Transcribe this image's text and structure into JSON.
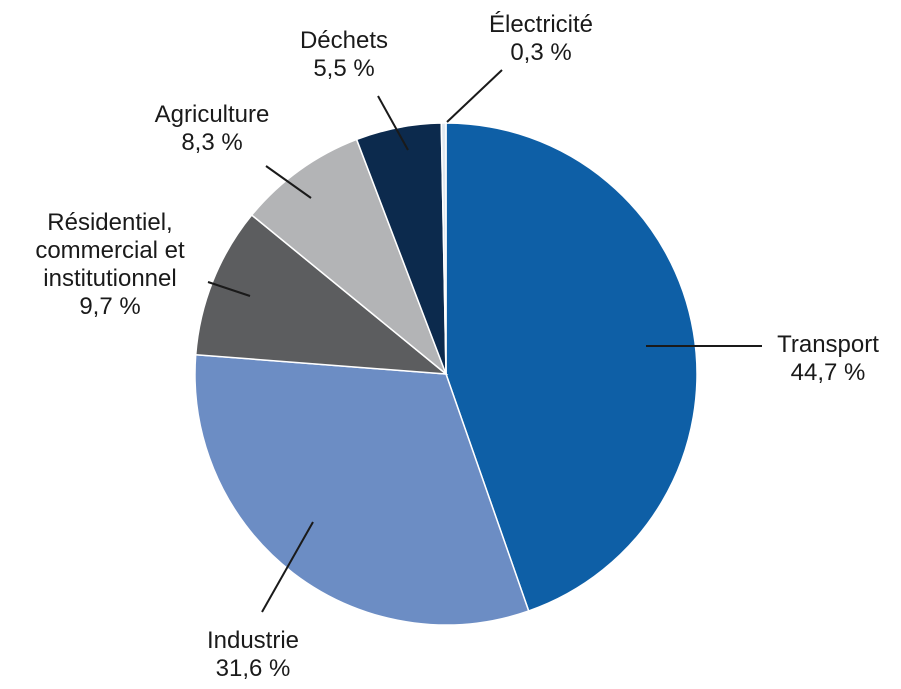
{
  "chart_data": {
    "type": "pie",
    "title": "",
    "slices": [
      {
        "key": "transport",
        "name_lines": [
          "Transport"
        ],
        "value": 44.7,
        "value_label": "44,7 %",
        "color": "#0e5fa6"
      },
      {
        "key": "industrie",
        "name_lines": [
          "Industrie"
        ],
        "value": 31.6,
        "value_label": "31,6 %",
        "color": "#6c8dc4"
      },
      {
        "key": "residentiel",
        "name_lines": [
          "Résidentiel,",
          "commercial et",
          "institutionnel"
        ],
        "value": 9.7,
        "value_label": "9,7 %",
        "color": "#5c5d5f"
      },
      {
        "key": "agriculture",
        "name_lines": [
          "Agriculture"
        ],
        "value": 8.3,
        "value_label": "8,3 %",
        "color": "#b3b4b6"
      },
      {
        "key": "dechets",
        "name_lines": [
          "Déchets"
        ],
        "value": 5.5,
        "value_label": "5,5 %",
        "color": "#0c2a4d"
      },
      {
        "key": "electricite",
        "name_lines": [
          "Électricité"
        ],
        "value": 0.3,
        "value_label": "0,3 %",
        "color": "#dfe7ef"
      }
    ]
  }
}
